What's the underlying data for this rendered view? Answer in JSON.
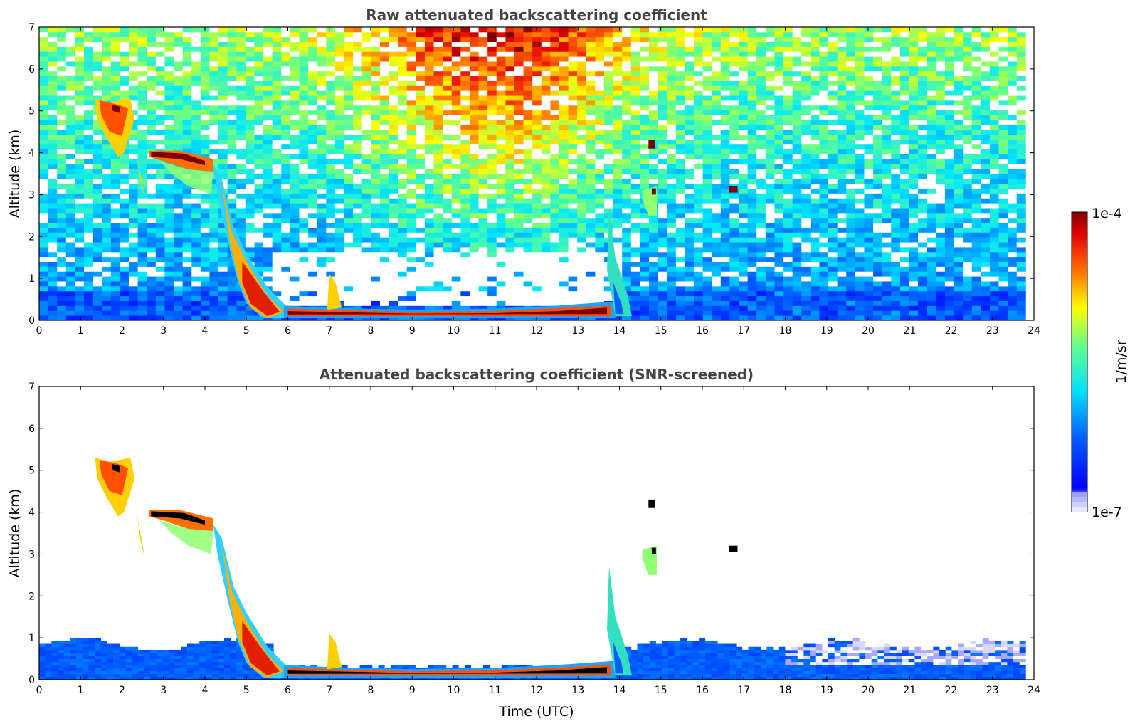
{
  "chart_data": [
    {
      "type": "heatmap",
      "title": "Raw attenuated backscattering coefficient",
      "ylabel": "Altitude (km)",
      "xlabel": "",
      "xlim": [
        0,
        24
      ],
      "ylim": [
        0,
        7
      ],
      "x_ticks": [
        "0",
        "1",
        "2",
        "3",
        "4",
        "5",
        "6",
        "7",
        "8",
        "9",
        "10",
        "11",
        "12",
        "13",
        "14",
        "15",
        "16",
        "17",
        "18",
        "19",
        "20",
        "21",
        "22",
        "23",
        "24"
      ],
      "y_ticks": [
        "0",
        "1",
        "2",
        "3",
        "4",
        "5",
        "6",
        "7"
      ],
      "grid": false,
      "screened": false
    },
    {
      "type": "heatmap",
      "title": "Attenuated backscattering coefficient (SNR-screened)",
      "ylabel": "Altitude (km)",
      "xlabel": "Time (UTC)",
      "xlim": [
        0,
        24
      ],
      "ylim": [
        0,
        7
      ],
      "x_ticks": [
        "0",
        "1",
        "2",
        "3",
        "4",
        "5",
        "6",
        "7",
        "8",
        "9",
        "10",
        "11",
        "12",
        "13",
        "14",
        "15",
        "16",
        "17",
        "18",
        "19",
        "20",
        "21",
        "22",
        "23",
        "24"
      ],
      "y_ticks": [
        "0",
        "1",
        "2",
        "3",
        "4",
        "5",
        "6",
        "7"
      ],
      "grid": false,
      "screened": true
    }
  ],
  "colorbar": {
    "label": "1/m/sr",
    "max_label": "1e-4",
    "min_label": "1e-7",
    "scale": "log",
    "colormap": "jet",
    "colors": [
      "#ffffff",
      "#0000ff",
      "#0080ff",
      "#00ffff",
      "#80ff80",
      "#ffff00",
      "#ff8000",
      "#ff0000",
      "#800000"
    ]
  },
  "features": {
    "cloud_layers": [
      {
        "name": "high-cloud",
        "t0": 1.3,
        "t1": 2.3,
        "alt_top": 5.3,
        "alt_bottom": 3.9
      },
      {
        "name": "mid-cloud",
        "t0": 2.6,
        "t1": 4.2,
        "alt_top": 4.05,
        "alt_bottom": 3.6
      },
      {
        "name": "descending-layer",
        "t0": 4.2,
        "t1": 6.0,
        "alt_top": 3.7,
        "alt_bottom": 0.1
      },
      {
        "name": "low-stratus",
        "t0": 6.0,
        "t1": 14.0,
        "alt_top": 0.35,
        "alt_bottom": 0.1
      },
      {
        "name": "isolated-cloud-1",
        "t0": 14.7,
        "t1": 14.9,
        "alt_top": 4.3,
        "alt_bottom": 2.5
      },
      {
        "name": "isolated-cloud-2",
        "t0": 16.7,
        "t1": 16.8,
        "alt_top": 3.2,
        "alt_bottom": 3.05
      }
    ],
    "boundary_layer_top_km": 0.8
  }
}
